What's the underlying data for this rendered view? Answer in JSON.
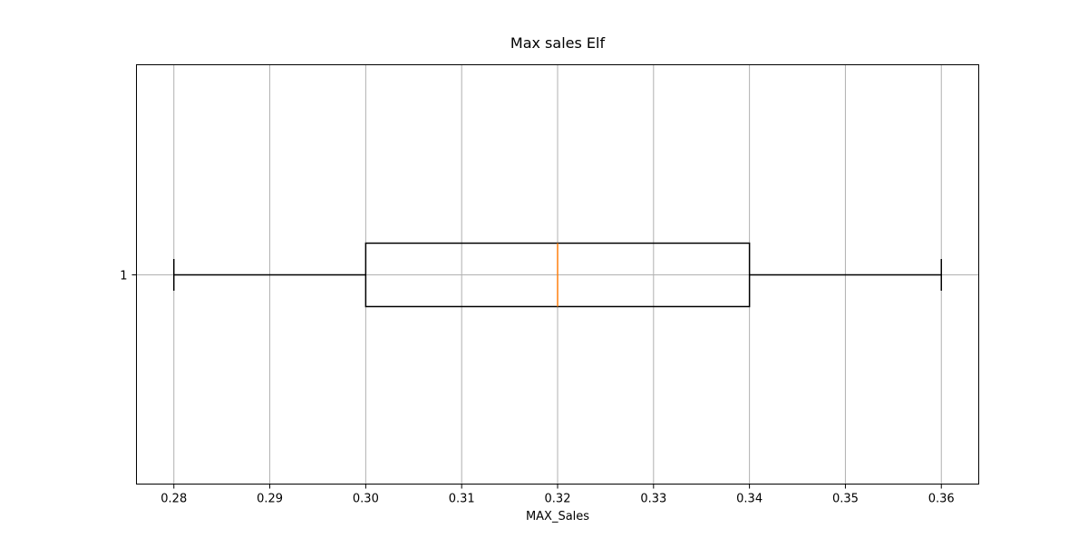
{
  "chart_data": {
    "type": "boxplot",
    "orientation": "horizontal",
    "title": "Max sales Elf",
    "xlabel": "MAX_Sales",
    "ylabel": "",
    "xlim": [
      0.2761,
      0.3639
    ],
    "xticks": [
      0.28,
      0.29,
      0.3,
      0.31,
      0.32,
      0.33,
      0.34,
      0.35,
      0.36
    ],
    "xtick_labels": [
      "0.28",
      "0.29",
      "0.30",
      "0.31",
      "0.32",
      "0.33",
      "0.34",
      "0.35",
      "0.36"
    ],
    "ytick_labels": [
      "1"
    ],
    "grid": true,
    "series": [
      {
        "category": "1",
        "whisker_low": 0.28,
        "q1": 0.3,
        "median": 0.32,
        "q3": 0.34,
        "whisker_high": 0.36
      }
    ],
    "colors": {
      "box": "#000000",
      "median": "#ff7f0e",
      "grid": "#b0b0b0"
    }
  }
}
